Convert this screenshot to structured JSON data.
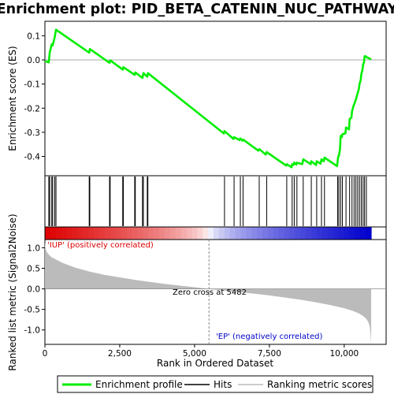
{
  "chart_data": {
    "type": "line",
    "title": "Enrichment plot: PID_BETA_CATENIN_NUC_PATHWAY",
    "xlabel": "Rank in Ordered Dataset",
    "ylabel_top": "Enrichment score (ES)",
    "ylabel_bottom": "Ranked list metric (Signal2Noise)",
    "xlim": [
      0,
      11400
    ],
    "x_ticks": [
      0,
      2500,
      5000,
      7500,
      10000
    ],
    "x_tick_labels": [
      "0",
      "2,500",
      "5,000",
      "7,500",
      "10,000"
    ],
    "es_ylim": [
      -0.48,
      0.16
    ],
    "es_ticks": [
      0.1,
      0.0,
      -0.1,
      -0.2,
      -0.3,
      -0.4
    ],
    "es_tick_labels": [
      "0.1",
      "0.0",
      "-0.1",
      "-0.2",
      "-0.3",
      "-0.4"
    ],
    "metric_ylim": [
      -1.35,
      1.2
    ],
    "metric_ticks": [
      1.0,
      0.5,
      0.0,
      -0.5,
      -1.0
    ],
    "metric_tick_labels": [
      "1.0",
      "0.5",
      "0.0",
      "-0.5",
      "-1.0"
    ],
    "series": [
      {
        "name": "Enrichment profile",
        "color": "#00ee00",
        "x": [
          0,
          130,
          160,
          230,
          260,
          330,
          370,
          1480,
          1500,
          2160,
          2180,
          2600,
          2620,
          3000,
          3020,
          3260,
          3290,
          3420,
          3440,
          5980,
          6000,
          6300,
          6320,
          6500,
          6530,
          6600,
          6620,
          7130,
          7160,
          7380,
          7410,
          8060,
          8080,
          8240,
          8260,
          8310,
          8330,
          8400,
          8420,
          8600,
          8630,
          8880,
          8900,
          9060,
          9080,
          9210,
          9240,
          9320,
          9340,
          9760,
          9780,
          9800,
          9820,
          9860,
          9880,
          9920,
          9940,
          10040,
          10060,
          10160,
          10180,
          10240,
          10260,
          10310,
          10330,
          10370,
          10390,
          10430,
          10450,
          10490,
          10510,
          10550,
          10570,
          10610,
          10630,
          10660,
          10680,
          10720,
          10740,
          10900
        ],
        "y": [
          -0.005,
          -0.01,
          0.03,
          0.065,
          0.06,
          0.095,
          0.125,
          0.03,
          0.045,
          -0.012,
          -0.002,
          -0.04,
          -0.03,
          -0.062,
          -0.052,
          -0.075,
          -0.055,
          -0.07,
          -0.055,
          -0.305,
          -0.295,
          -0.328,
          -0.32,
          -0.332,
          -0.326,
          -0.335,
          -0.33,
          -0.376,
          -0.37,
          -0.392,
          -0.382,
          -0.438,
          -0.432,
          -0.445,
          -0.432,
          -0.435,
          -0.425,
          -0.434,
          -0.426,
          -0.432,
          -0.412,
          -0.432,
          -0.42,
          -0.436,
          -0.42,
          -0.43,
          -0.412,
          -0.42,
          -0.405,
          -0.44,
          -0.42,
          -0.4,
          -0.398,
          -0.37,
          -0.315,
          -0.32,
          -0.308,
          -0.305,
          -0.28,
          -0.288,
          -0.245,
          -0.24,
          -0.215,
          -0.19,
          -0.185,
          -0.17,
          -0.165,
          -0.145,
          -0.138,
          -0.12,
          -0.1,
          -0.085,
          -0.06,
          -0.04,
          -0.02,
          -0.01,
          0.015,
          0.015,
          0.012,
          0.002
        ]
      },
      {
        "name": "Hits",
        "color": "#000000",
        "x": [
          130,
          160,
          230,
          260,
          330,
          370,
          1480,
          1500,
          2160,
          2180,
          2600,
          2620,
          3000,
          3020,
          3260,
          3290,
          3420,
          3440,
          6000,
          6320,
          6530,
          6620,
          7160,
          7410,
          8080,
          8260,
          8330,
          8420,
          8630,
          8900,
          9080,
          9240,
          9340,
          9780,
          9820,
          9880,
          9940,
          10060,
          10180,
          10260,
          10330,
          10390,
          10450,
          10510,
          10570,
          10630,
          10680,
          10740
        ]
      },
      {
        "name": "Ranking metric scores",
        "color": "#bbbbbb",
        "x": [
          0,
          20,
          60,
          120,
          200,
          350,
          600,
          1000,
          1500,
          2000,
          2500,
          3000,
          3500,
          4000,
          4500,
          5000,
          5482,
          6000,
          6500,
          7000,
          7500,
          8000,
          8500,
          9000,
          9500,
          10000,
          10300,
          10500,
          10650,
          10750,
          10800,
          10850,
          10880,
          10900
        ],
        "y": [
          1.15,
          0.98,
          0.9,
          0.84,
          0.78,
          0.72,
          0.63,
          0.52,
          0.42,
          0.34,
          0.28,
          0.22,
          0.17,
          0.12,
          0.08,
          0.04,
          0.0,
          -0.04,
          -0.08,
          -0.12,
          -0.16,
          -0.21,
          -0.26,
          -0.32,
          -0.39,
          -0.47,
          -0.54,
          -0.6,
          -0.67,
          -0.74,
          -0.8,
          -0.9,
          -1.1,
          -1.35
        ]
      }
    ],
    "zero_cross_label": "Zero cross at 5482",
    "zero_cross_x": 5482,
    "up_label": "'IUP' (positively correlated)",
    "down_label": "'EP' (negatively correlated)",
    "dataset_size": 10900,
    "legend": {
      "placement": "bottom",
      "items": [
        "Enrichment profile",
        "Hits",
        "Ranking metric scores"
      ]
    },
    "colors": {
      "profile": "#00ee00",
      "positive": "#dd0000",
      "negative": "#0000cc",
      "metric_fill": "#bbbbbb",
      "up_text": "#dd0000",
      "down_text": "#0000cc"
    }
  }
}
